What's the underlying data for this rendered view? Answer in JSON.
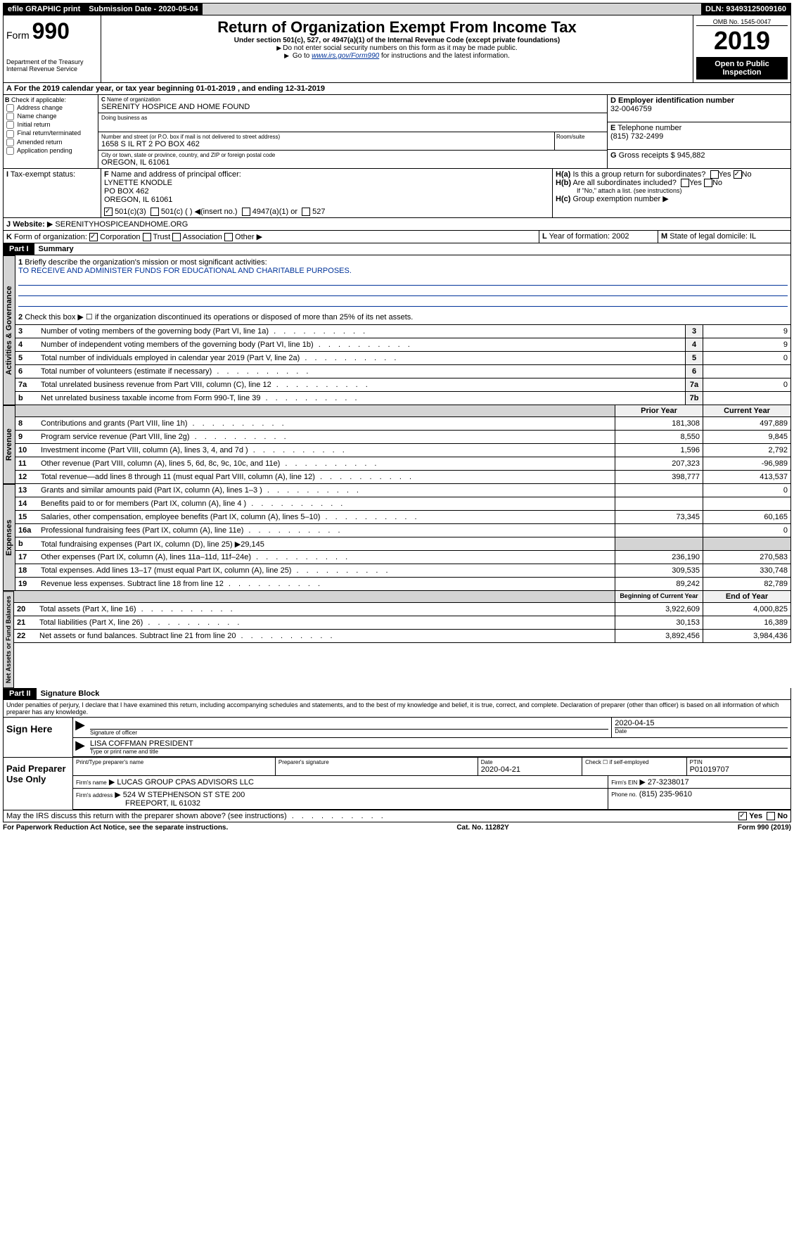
{
  "topbar": {
    "efile": "efile GRAPHIC print",
    "subdate_label": "Submission Date - 2020-05-04",
    "dln": "DLN: 93493125009160"
  },
  "header": {
    "form_label": "Form",
    "form_num": "990",
    "dept": "Department of the Treasury",
    "irs": "Internal Revenue Service",
    "title": "Return of Organization Exempt From Income Tax",
    "subtitle": "Under section 501(c), 527, or 4947(a)(1) of the Internal Revenue Code (except private foundations)",
    "note1": "Do not enter social security numbers on this form as it may be made public.",
    "note2_pre": "Go to ",
    "note2_link": "www.irs.gov/Form990",
    "note2_post": " for instructions and the latest information.",
    "omb": "OMB No. 1545-0047",
    "year": "2019",
    "open": "Open to Public Inspection"
  },
  "period": {
    "line": "For the 2019 calendar year, or tax year beginning 01-01-2019    , and ending 12-31-2019"
  },
  "boxB": {
    "label": "Check if applicable:",
    "opts": [
      "Address change",
      "Name change",
      "Initial return",
      "Final return/terminated",
      "Amended return",
      "Application pending"
    ]
  },
  "boxC": {
    "name_label": "Name of organization",
    "name": "SERENITY HOSPICE AND HOME FOUND",
    "dba_label": "Doing business as",
    "addr_label": "Number and street (or P.O. box if mail is not delivered to street address)",
    "room_label": "Room/suite",
    "addr": "1658 S IL RT 2 PO BOX 462",
    "city_label": "City or town, state or province, country, and ZIP or foreign postal code",
    "city": "OREGON, IL  61061"
  },
  "boxD": {
    "label": "Employer identification number",
    "ein": "32-0046759"
  },
  "boxE": {
    "label": "Telephone number",
    "phone": "(815) 732-2499"
  },
  "boxF": {
    "label": "Name and address of principal officer:",
    "name": "LYNETTE KNODLE",
    "addr1": "PO BOX 462",
    "addr2": "OREGON, IL  61061"
  },
  "boxG": {
    "label": "Gross receipts $",
    "val": "945,882"
  },
  "boxH": {
    "ha": "Is this a group return for subordinates?",
    "hb": "Are all subordinates included?",
    "hnote": "If \"No,\" attach a list. (see instructions)",
    "hc": "Group exemption number"
  },
  "boxI": {
    "label": "Tax-exempt status:",
    "opt1": "501(c)(3)",
    "opt2": "501(c) (   )",
    "opt2b": "(insert no.)",
    "opt3": "4947(a)(1) or",
    "opt4": "527"
  },
  "boxJ": {
    "label": "Website:",
    "val": "SERENITYHOSPICEANDHOME.ORG"
  },
  "boxK": {
    "label": "Form of organization:",
    "opts": [
      "Corporation",
      "Trust",
      "Association",
      "Other"
    ]
  },
  "boxL": {
    "label": "Year of formation:",
    "val": "2002"
  },
  "boxM": {
    "label": "State of legal domicile:",
    "val": "IL"
  },
  "part1": {
    "label": "Part I",
    "title": "Summary"
  },
  "summary": {
    "q1": "Briefly describe the organization's mission or most significant activities:",
    "q1a": "TO RECEIVE AND ADMINISTER FUNDS FOR EDUCATIONAL AND CHARITABLE PURPOSES.",
    "q2": "Check this box ▶ ☐  if the organization discontinued its operations or disposed of more than 25% of its net assets.",
    "lines": [
      {
        "n": "3",
        "d": "Number of voting members of the governing body (Part VI, line 1a)",
        "box": "3",
        "v": "9"
      },
      {
        "n": "4",
        "d": "Number of independent voting members of the governing body (Part VI, line 1b)",
        "box": "4",
        "v": "9"
      },
      {
        "n": "5",
        "d": "Total number of individuals employed in calendar year 2019 (Part V, line 2a)",
        "box": "5",
        "v": "0"
      },
      {
        "n": "6",
        "d": "Total number of volunteers (estimate if necessary)",
        "box": "6",
        "v": ""
      },
      {
        "n": "7a",
        "d": "Total unrelated business revenue from Part VIII, column (C), line 12",
        "box": "7a",
        "v": "0"
      },
      {
        "n": "b",
        "d": "Net unrelated business taxable income from Form 990-T, line 39",
        "box": "7b",
        "v": ""
      }
    ],
    "col_prior": "Prior Year",
    "col_current": "Current Year",
    "col_begin": "Beginning of Current Year",
    "col_end": "End of Year",
    "revenue": [
      {
        "n": "8",
        "d": "Contributions and grants (Part VIII, line 1h)",
        "p": "181,308",
        "c": "497,889"
      },
      {
        "n": "9",
        "d": "Program service revenue (Part VIII, line 2g)",
        "p": "8,550",
        "c": "9,845"
      },
      {
        "n": "10",
        "d": "Investment income (Part VIII, column (A), lines 3, 4, and 7d )",
        "p": "1,596",
        "c": "2,792"
      },
      {
        "n": "11",
        "d": "Other revenue (Part VIII, column (A), lines 5, 6d, 8c, 9c, 10c, and 11e)",
        "p": "207,323",
        "c": "-96,989"
      },
      {
        "n": "12",
        "d": "Total revenue—add lines 8 through 11 (must equal Part VIII, column (A), line 12)",
        "p": "398,777",
        "c": "413,537"
      }
    ],
    "expenses": [
      {
        "n": "13",
        "d": "Grants and similar amounts paid (Part IX, column (A), lines 1–3 )",
        "p": "",
        "c": "0"
      },
      {
        "n": "14",
        "d": "Benefits paid to or for members (Part IX, column (A), line 4 )",
        "p": "",
        "c": ""
      },
      {
        "n": "15",
        "d": "Salaries, other compensation, employee benefits (Part IX, column (A), lines 5–10)",
        "p": "73,345",
        "c": "60,165"
      },
      {
        "n": "16a",
        "d": "Professional fundraising fees (Part IX, column (A), line 11e)",
        "p": "",
        "c": "0"
      },
      {
        "n": "b",
        "d": "Total fundraising expenses (Part IX, column (D), line 25) ▶29,145",
        "p": "—",
        "c": "—"
      },
      {
        "n": "17",
        "d": "Other expenses (Part IX, column (A), lines 11a–11d, 11f–24e)",
        "p": "236,190",
        "c": "270,583"
      },
      {
        "n": "18",
        "d": "Total expenses. Add lines 13–17 (must equal Part IX, column (A), line 25)",
        "p": "309,535",
        "c": "330,748"
      },
      {
        "n": "19",
        "d": "Revenue less expenses. Subtract line 18 from line 12",
        "p": "89,242",
        "c": "82,789"
      }
    ],
    "netassets": [
      {
        "n": "20",
        "d": "Total assets (Part X, line 16)",
        "p": "3,922,609",
        "c": "4,000,825"
      },
      {
        "n": "21",
        "d": "Total liabilities (Part X, line 26)",
        "p": "30,153",
        "c": "16,389"
      },
      {
        "n": "22",
        "d": "Net assets or fund balances. Subtract line 21 from line 20",
        "p": "3,892,456",
        "c": "3,984,436"
      }
    ]
  },
  "tabs": {
    "gov": "Activities & Governance",
    "rev": "Revenue",
    "exp": "Expenses",
    "net": "Net Assets or Fund Balances"
  },
  "part2": {
    "label": "Part II",
    "title": "Signature Block",
    "decl": "Under penalties of perjury, I declare that I have examined this return, including accompanying schedules and statements, and to the best of my knowledge and belief, it is true, correct, and complete. Declaration of preparer (other than officer) is based on all information of which preparer has any knowledge."
  },
  "sign": {
    "label": "Sign Here",
    "sig_officer": "Signature of officer",
    "date": "2020-04-15",
    "date_label": "Date",
    "name": "LISA COFFMAN PRESIDENT",
    "name_label": "Type or print name and title"
  },
  "paid": {
    "label": "Paid Preparer Use Only",
    "col1": "Print/Type preparer's name",
    "col2": "Preparer's signature",
    "col3": "Date",
    "col3v": "2020-04-21",
    "col4": "Check ☐ if self-employed",
    "col5": "PTIN",
    "col5v": "P01019707",
    "firm_label": "Firm's name",
    "firm": "LUCAS GROUP CPAS ADVISORS LLC",
    "ein_label": "Firm's EIN",
    "ein": "27-3238017",
    "addr_label": "Firm's address",
    "addr": "524 W STEPHENSON ST STE 200",
    "addr2": "FREEPORT, IL  61032",
    "phone_label": "Phone no.",
    "phone": "(815) 235-9610"
  },
  "discuss": "May the IRS discuss this return with the preparer shown above? (see instructions)",
  "footer": {
    "pra": "For Paperwork Reduction Act Notice, see the separate instructions.",
    "cat": "Cat. No. 11282Y",
    "form": "Form 990 (2019)"
  }
}
